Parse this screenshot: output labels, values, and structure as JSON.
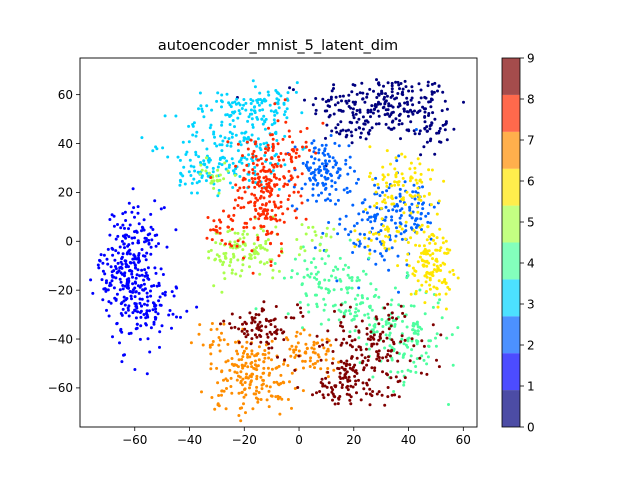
{
  "chart_data": {
    "type": "scatter",
    "title": "autoencoder_mnist_5_latent_dim",
    "xlabel": "",
    "ylabel": "",
    "xlim": [
      -80,
      65
    ],
    "ylim": [
      -76,
      75
    ],
    "xticks": [
      -60,
      -40,
      -20,
      0,
      20,
      40,
      60
    ],
    "yticks": [
      -60,
      -40,
      -20,
      0,
      20,
      40,
      60
    ],
    "grid": false,
    "colormap": "jet",
    "colorbar": {
      "ticks": [
        "0",
        "1",
        "2",
        "3",
        "4",
        "5",
        "6",
        "7",
        "8",
        "9"
      ],
      "range": [
        0,
        9
      ],
      "colors": [
        "#00007f",
        "#0000ff",
        "#0063ff",
        "#00d4ff",
        "#4eff9f",
        "#aaff4d",
        "#ffe600",
        "#ff8d00",
        "#ff2a00",
        "#7f0000"
      ],
      "alpha": 0.7
    },
    "series": [
      {
        "label": 0,
        "color": "#00007f",
        "clusters": [
          {
            "cx": 30,
            "cy": 56,
            "sx": 13,
            "sy": 6,
            "n": 220
          },
          {
            "cx": 47,
            "cy": 47,
            "sx": 4,
            "sy": 6,
            "n": 50
          },
          {
            "cx": 22,
            "cy": 45,
            "sx": 4,
            "sy": 3,
            "n": 25
          }
        ]
      },
      {
        "label": 1,
        "color": "#0000ff",
        "clusters": [
          {
            "cx": -60,
            "cy": -14,
            "sx": 5,
            "sy": 14,
            "n": 250
          },
          {
            "cx": -67,
            "cy": -10,
            "sx": 4,
            "sy": 6,
            "n": 60
          },
          {
            "cx": -52,
            "cy": -26,
            "sx": 5,
            "sy": 5,
            "n": 50
          }
        ]
      },
      {
        "label": 2,
        "color": "#0063ff",
        "clusters": [
          {
            "cx": 8,
            "cy": 28,
            "sx": 5,
            "sy": 7,
            "n": 110
          },
          {
            "cx": 28,
            "cy": 8,
            "sx": 9,
            "sy": 11,
            "n": 130
          },
          {
            "cx": 42,
            "cy": 14,
            "sx": 4,
            "sy": 6,
            "n": 50
          }
        ]
      },
      {
        "label": 3,
        "color": "#00d4ff",
        "clusters": [
          {
            "cx": -23,
            "cy": 40,
            "sx": 11,
            "sy": 10,
            "n": 200
          },
          {
            "cx": -12,
            "cy": 57,
            "sx": 8,
            "sy": 4,
            "n": 70
          },
          {
            "cx": -36,
            "cy": 28,
            "sx": 4,
            "sy": 4,
            "n": 40
          }
        ]
      },
      {
        "label": 4,
        "color": "#4eff9f",
        "clusters": [
          {
            "cx": 10,
            "cy": -15,
            "sx": 8,
            "sy": 6,
            "n": 80
          },
          {
            "cx": 38,
            "cy": -38,
            "sx": 8,
            "sy": 10,
            "n": 140
          },
          {
            "cx": 22,
            "cy": -28,
            "sx": 7,
            "sy": 4,
            "n": 50
          }
        ]
      },
      {
        "label": 5,
        "color": "#aaff4d",
        "clusters": [
          {
            "cx": -20,
            "cy": -5,
            "sx": 7,
            "sy": 6,
            "n": 110
          },
          {
            "cx": -31,
            "cy": 27,
            "sx": 3,
            "sy": 3,
            "n": 25
          },
          {
            "cx": 5,
            "cy": 2,
            "sx": 4,
            "sy": 3,
            "n": 20
          }
        ]
      },
      {
        "label": 6,
        "color": "#ffe600",
        "clusters": [
          {
            "cx": 48,
            "cy": -8,
            "sx": 4,
            "sy": 8,
            "n": 130
          },
          {
            "cx": 38,
            "cy": 22,
            "sx": 6,
            "sy": 9,
            "n": 90
          },
          {
            "cx": 30,
            "cy": 2,
            "sx": 5,
            "sy": 4,
            "n": 30
          }
        ]
      },
      {
        "label": 7,
        "color": "#ff8d00",
        "clusters": [
          {
            "cx": -17,
            "cy": -55,
            "sx": 8,
            "sy": 8,
            "n": 190
          },
          {
            "cx": 5,
            "cy": -45,
            "sx": 5,
            "sy": 4,
            "n": 60
          },
          {
            "cx": -30,
            "cy": -40,
            "sx": 4,
            "sy": 4,
            "n": 20
          }
        ]
      },
      {
        "label": 8,
        "color": "#ff2a00",
        "clusters": [
          {
            "cx": -13,
            "cy": 20,
            "sx": 6,
            "sy": 13,
            "n": 220
          },
          {
            "cx": -28,
            "cy": 5,
            "sx": 3,
            "sy": 4,
            "n": 25
          },
          {
            "cx": -3,
            "cy": 35,
            "sx": 3,
            "sy": 6,
            "n": 40
          }
        ]
      },
      {
        "label": 9,
        "color": "#7f0000",
        "clusters": [
          {
            "cx": 25,
            "cy": -45,
            "sx": 12,
            "sy": 9,
            "n": 170
          },
          {
            "cx": 17,
            "cy": -60,
            "sx": 8,
            "sy": 5,
            "n": 70
          },
          {
            "cx": -14,
            "cy": -35,
            "sx": 7,
            "sy": 4,
            "n": 80
          }
        ]
      }
    ]
  }
}
